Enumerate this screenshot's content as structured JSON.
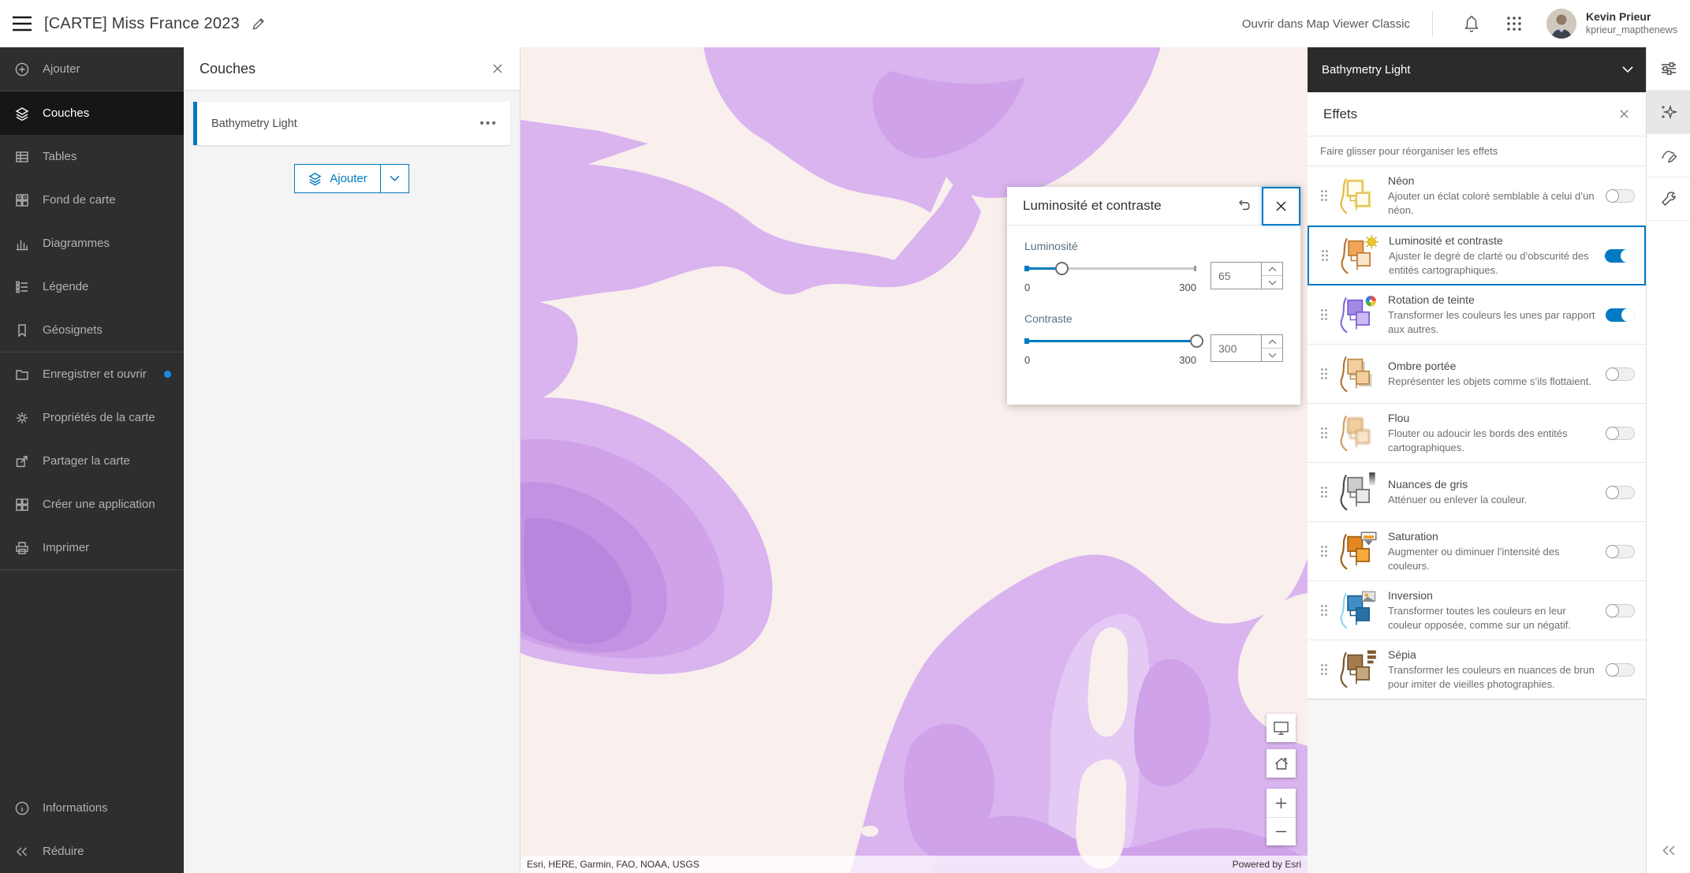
{
  "colors": {
    "accent": "#007ac2",
    "accent_alt": "#0079c1",
    "sidebar_bg": "#2e2e2e",
    "selector_bg": "#2b2b2b",
    "land": "#f9efec",
    "sea_light": "#e3c9f4",
    "sea_base": "#d9b4ef",
    "sea_mid": "#cfa2e9",
    "sea_deep": "#c393e3",
    "sea_deepest": "#b986dd"
  },
  "topbar": {
    "title": "[CARTE] Miss France 2023",
    "open_classic_label": "Ouvrir dans Map Viewer Classic",
    "user": {
      "name": "Kevin Prieur",
      "username": "kprieur_mapthenews"
    }
  },
  "sidebar": {
    "items": [
      {
        "label": "Ajouter",
        "icon": "plus-circle",
        "active": false
      },
      {
        "label": "Couches",
        "icon": "layers",
        "active": true,
        "sep_before": true
      },
      {
        "label": "Tables",
        "icon": "table",
        "active": false
      },
      {
        "label": "Fond de carte",
        "icon": "basemap",
        "active": false
      },
      {
        "label": "Diagrammes",
        "icon": "chart",
        "active": false
      },
      {
        "label": "Légende",
        "icon": "legend",
        "active": false
      },
      {
        "label": "Géosignets",
        "icon": "bookmark",
        "active": false
      },
      {
        "label": "Enregistrer et ouvrir",
        "icon": "folder",
        "active": false,
        "sep_before": true,
        "badge": true
      },
      {
        "label": "Propriétés de la carte",
        "icon": "gear",
        "active": false
      },
      {
        "label": "Partager la carte",
        "icon": "share",
        "active": false
      },
      {
        "label": "Créer une application",
        "icon": "app-grid",
        "active": false
      },
      {
        "label": "Imprimer",
        "icon": "printer",
        "active": false,
        "sep_after": true
      }
    ],
    "footer_items": [
      {
        "label": "Informations",
        "icon": "info"
      },
      {
        "label": "Réduire",
        "icon": "collapse"
      }
    ]
  },
  "layers_panel": {
    "title": "Couches",
    "layer_name": "Bathymetry Light",
    "add_button_label": "Ajouter"
  },
  "dialog": {
    "title": "Luminosité et contraste",
    "sliders": [
      {
        "label": "Luminosité",
        "value": "65",
        "min": "0",
        "max": "300",
        "percent": 21.7
      },
      {
        "label": "Contraste",
        "value": "300",
        "min": "0",
        "max": "300",
        "percent": 100
      }
    ]
  },
  "effects_panel": {
    "layer_selector_label": "Bathymetry Light",
    "title": "Effets",
    "hint": "Faire glisser pour réorganiser les effets",
    "effects": [
      {
        "name": "Néon",
        "description": "Ajouter un éclat coloré semblable à celui d’un néon.",
        "enabled": false,
        "selected": false,
        "icon": "neon"
      },
      {
        "name": "Luminosité et contraste",
        "description": "Ajuster le degré de clarté ou d’obscurité des entités cartographiques.",
        "enabled": true,
        "selected": true,
        "icon": "brightness"
      },
      {
        "name": "Rotation de teinte",
        "description": "Transformer les couleurs les unes par rapport aux autres.",
        "enabled": true,
        "selected": false,
        "icon": "hue"
      },
      {
        "name": "Ombre portée",
        "description": "Représenter les objets comme s’ils flottaient.",
        "enabled": false,
        "selected": false,
        "icon": "shadow"
      },
      {
        "name": "Flou",
        "description": "Flouter ou adoucir les bords des entités cartographiques.",
        "enabled": false,
        "selected": false,
        "icon": "blur"
      },
      {
        "name": "Nuances de gris",
        "description": "Atténuer ou enlever la couleur.",
        "enabled": false,
        "selected": false,
        "icon": "grayscale"
      },
      {
        "name": "Saturation",
        "description": "Augmenter ou diminuer l’intensité des couleurs.",
        "enabled": false,
        "selected": false,
        "icon": "saturation"
      },
      {
        "name": "Inversion",
        "description": "Transformer toutes les couleurs en leur couleur opposée, comme sur un négatif.",
        "enabled": false,
        "selected": false,
        "icon": "invert"
      },
      {
        "name": "Sépia",
        "description": "Transformer les couleurs en nuances de brun pour imiter de vieilles photographies.",
        "enabled": false,
        "selected": false,
        "icon": "sepia"
      }
    ]
  },
  "map": {
    "attribution": "Esri, HERE, Garmin, FAO, NOAA, USGS",
    "powered_by": "Powered by Esri"
  }
}
